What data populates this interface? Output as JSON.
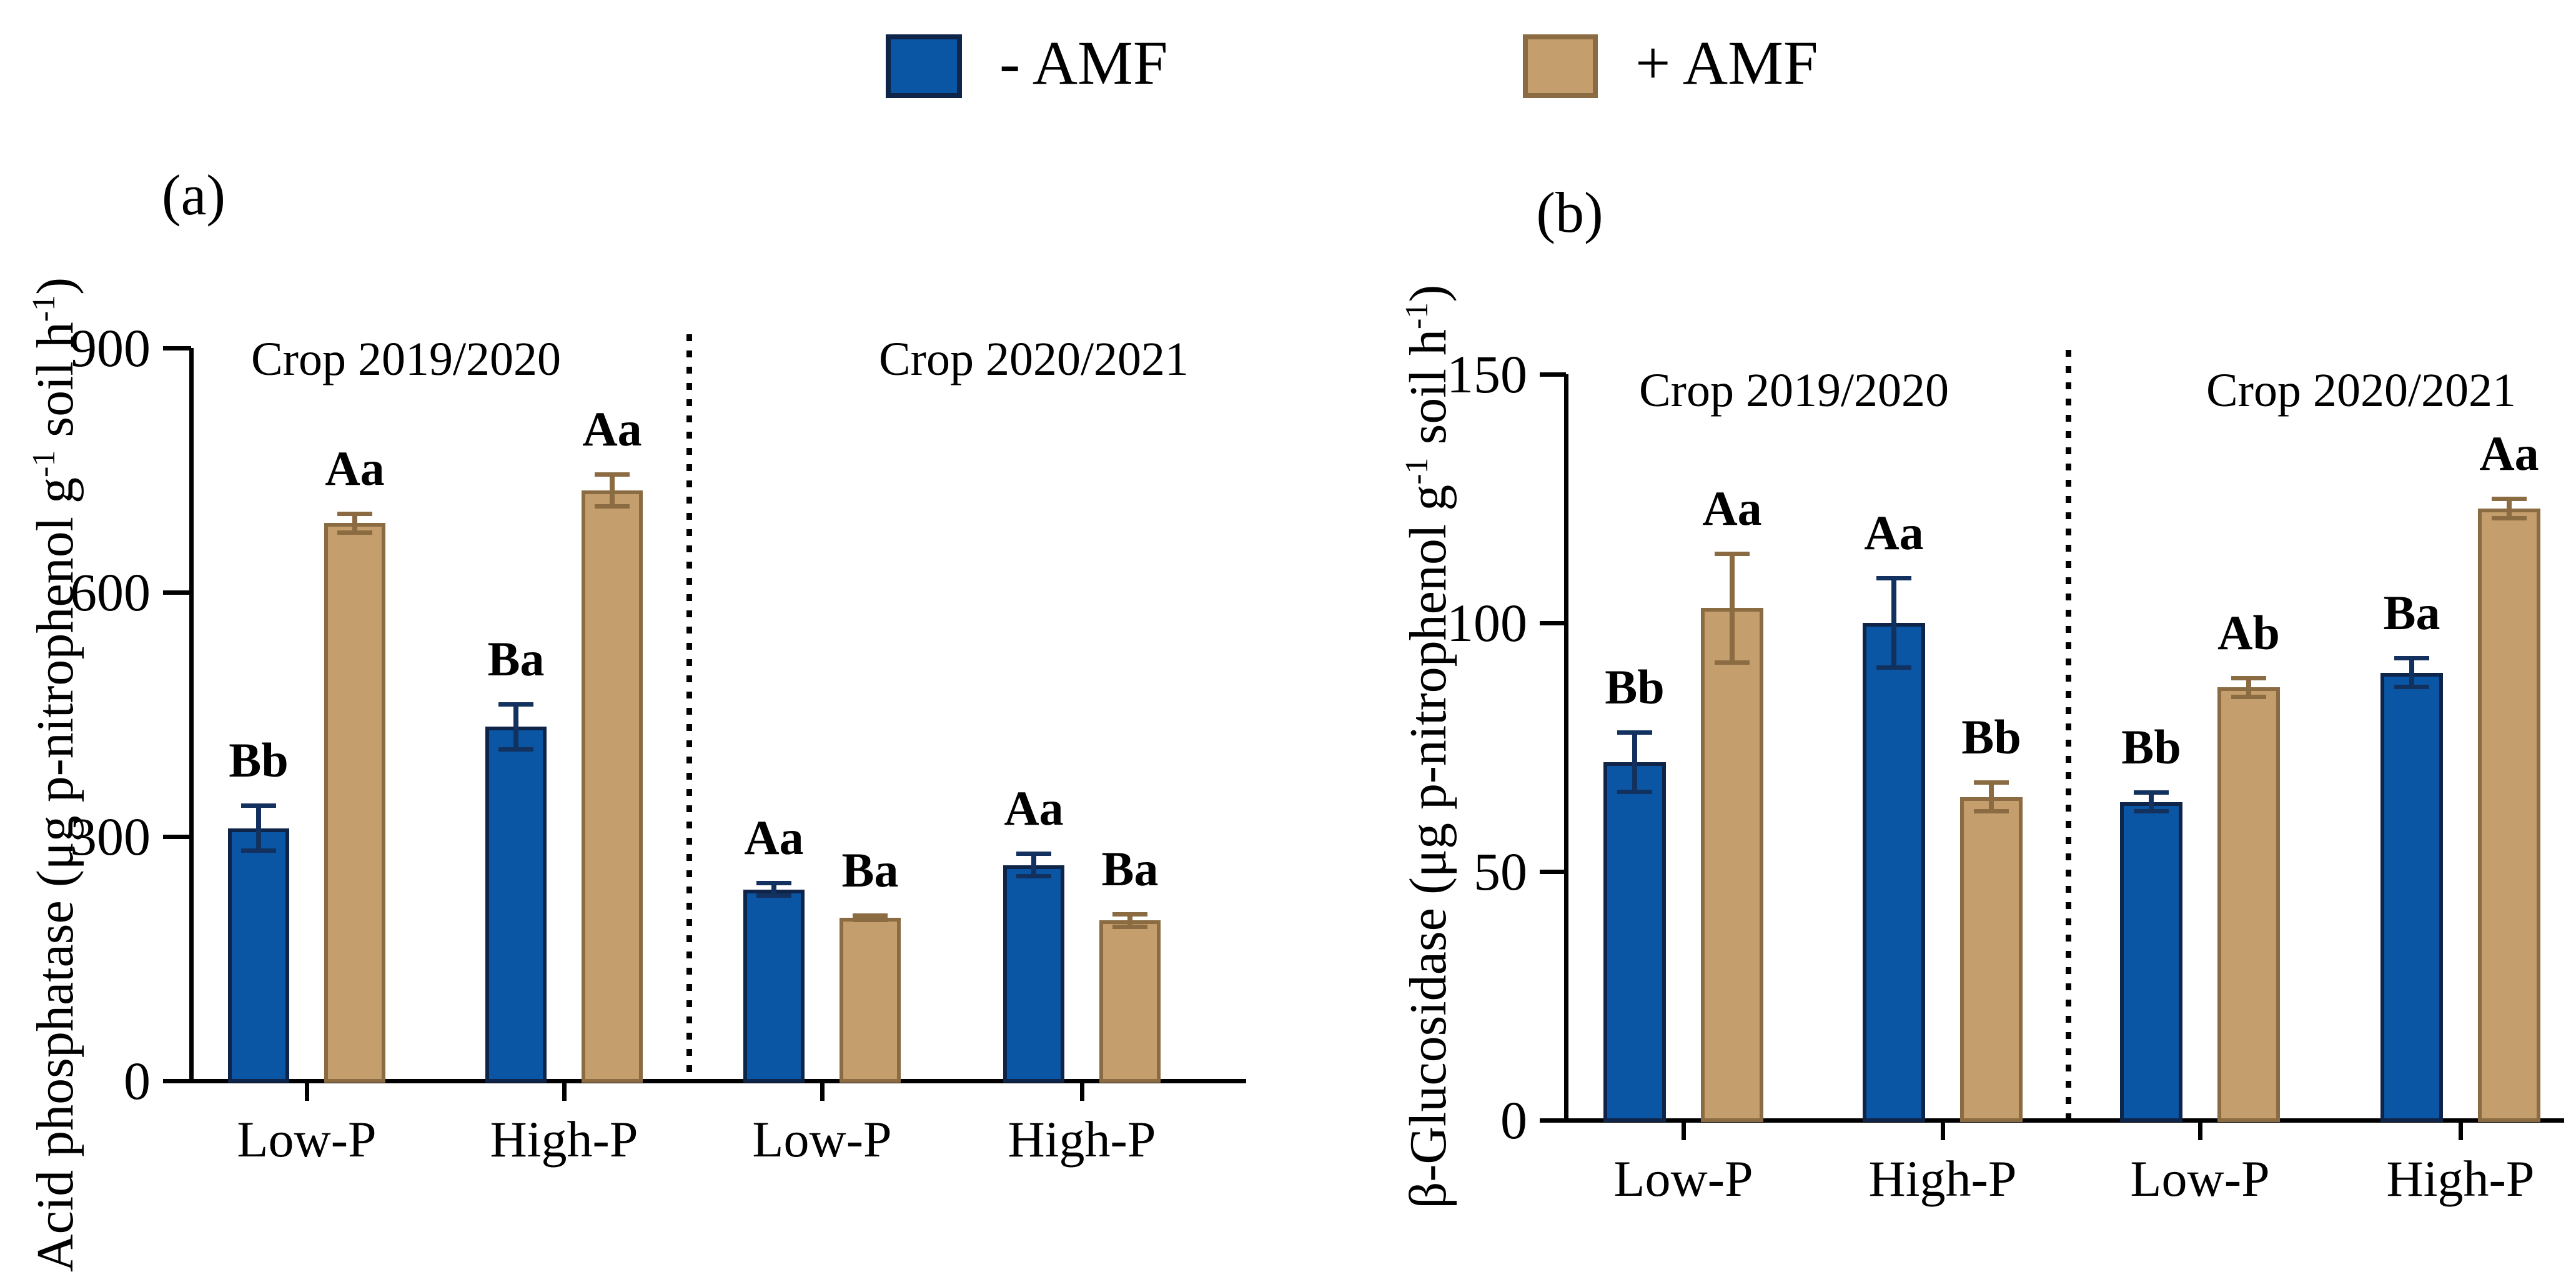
{
  "legend": {
    "items": [
      {
        "label": "- AMF",
        "color": "#0B56A4",
        "border": "#0E2448"
      },
      {
        "label": "+ AMF",
        "color": "#C49E6C",
        "border": "#8A6B42"
      }
    ]
  },
  "chart_data": [
    {
      "id": "a",
      "type": "bar",
      "panel_label": "(a)",
      "ylabel": "Acid phosphatase (μg p-nitrophenol g⁻¹ soil h⁻¹)",
      "ylabel_parts": [
        [
          "text",
          "Acid phosphatase (μg p-nitrophenol g"
        ],
        [
          "sup",
          "-1"
        ],
        [
          "text",
          " soil h"
        ],
        [
          "sup",
          "-1"
        ],
        [
          "text",
          ")"
        ]
      ],
      "xlabel": "",
      "ylim": [
        0,
        900
      ],
      "yticks": [
        "0",
        "300",
        "600",
        "900"
      ],
      "grid": false,
      "panels": [
        {
          "title": "Crop 2019/2020"
        },
        {
          "title": "Crop 2020/2021"
        }
      ],
      "categories": [
        "Low-P",
        "High-P",
        "Low-P",
        "High-P"
      ],
      "series": [
        {
          "name": "- AMF",
          "color": "#0B56A4",
          "border": "#0E2448",
          "error_color": "#12315E",
          "values": [
            310,
            435,
            235,
            265
          ],
          "errors": [
            28,
            28,
            8,
            14
          ],
          "letters": [
            "Bb",
            "Ba",
            "Aa",
            "Aa"
          ]
        },
        {
          "name": "+ AMF",
          "color": "#C49E6C",
          "border": "#8A6B42",
          "error_color": "#8A6B42",
          "values": [
            685,
            725,
            200,
            197
          ],
          "errors": [
            12,
            20,
            3,
            8
          ],
          "letters": [
            "Aa",
            "Aa",
            "Ba",
            "Ba"
          ]
        }
      ]
    },
    {
      "id": "b",
      "type": "bar",
      "panel_label": "(b)",
      "ylabel": "β-Glucosidase  (μg p-nitrophenol g⁻¹ soil h⁻¹)",
      "ylabel_parts": [
        [
          "text",
          "β-Glucosidase  (μg p-nitrophenol g"
        ],
        [
          "sup",
          "-1"
        ],
        [
          "text",
          " soil h"
        ],
        [
          "sup",
          "-1"
        ],
        [
          "text",
          ")"
        ]
      ],
      "xlabel": "",
      "ylim": [
        0,
        150
      ],
      "yticks": [
        "0",
        "50",
        "100",
        "150"
      ],
      "grid": false,
      "panels": [
        {
          "title": "Crop 2019/2020"
        },
        {
          "title": "Crop 2020/2021"
        }
      ],
      "categories": [
        "Low-P",
        "High-P",
        "Low-P",
        "High-P"
      ],
      "series": [
        {
          "name": "- AMF",
          "color": "#0B56A4",
          "border": "#0E2448",
          "error_color": "#12315E",
          "values": [
            72,
            100,
            64,
            90
          ],
          "errors": [
            6,
            9,
            2,
            3
          ],
          "letters": [
            "Bb",
            "Aa",
            "Bb",
            "Ba"
          ]
        },
        {
          "name": "+ AMF",
          "color": "#C49E6C",
          "border": "#8A6B42",
          "error_color": "#8A6B42",
          "values": [
            103,
            65,
            87,
            123
          ],
          "errors": [
            11,
            3,
            2,
            2
          ],
          "letters": [
            "Aa",
            "Bb",
            "Ab",
            "Aa"
          ]
        }
      ]
    }
  ]
}
